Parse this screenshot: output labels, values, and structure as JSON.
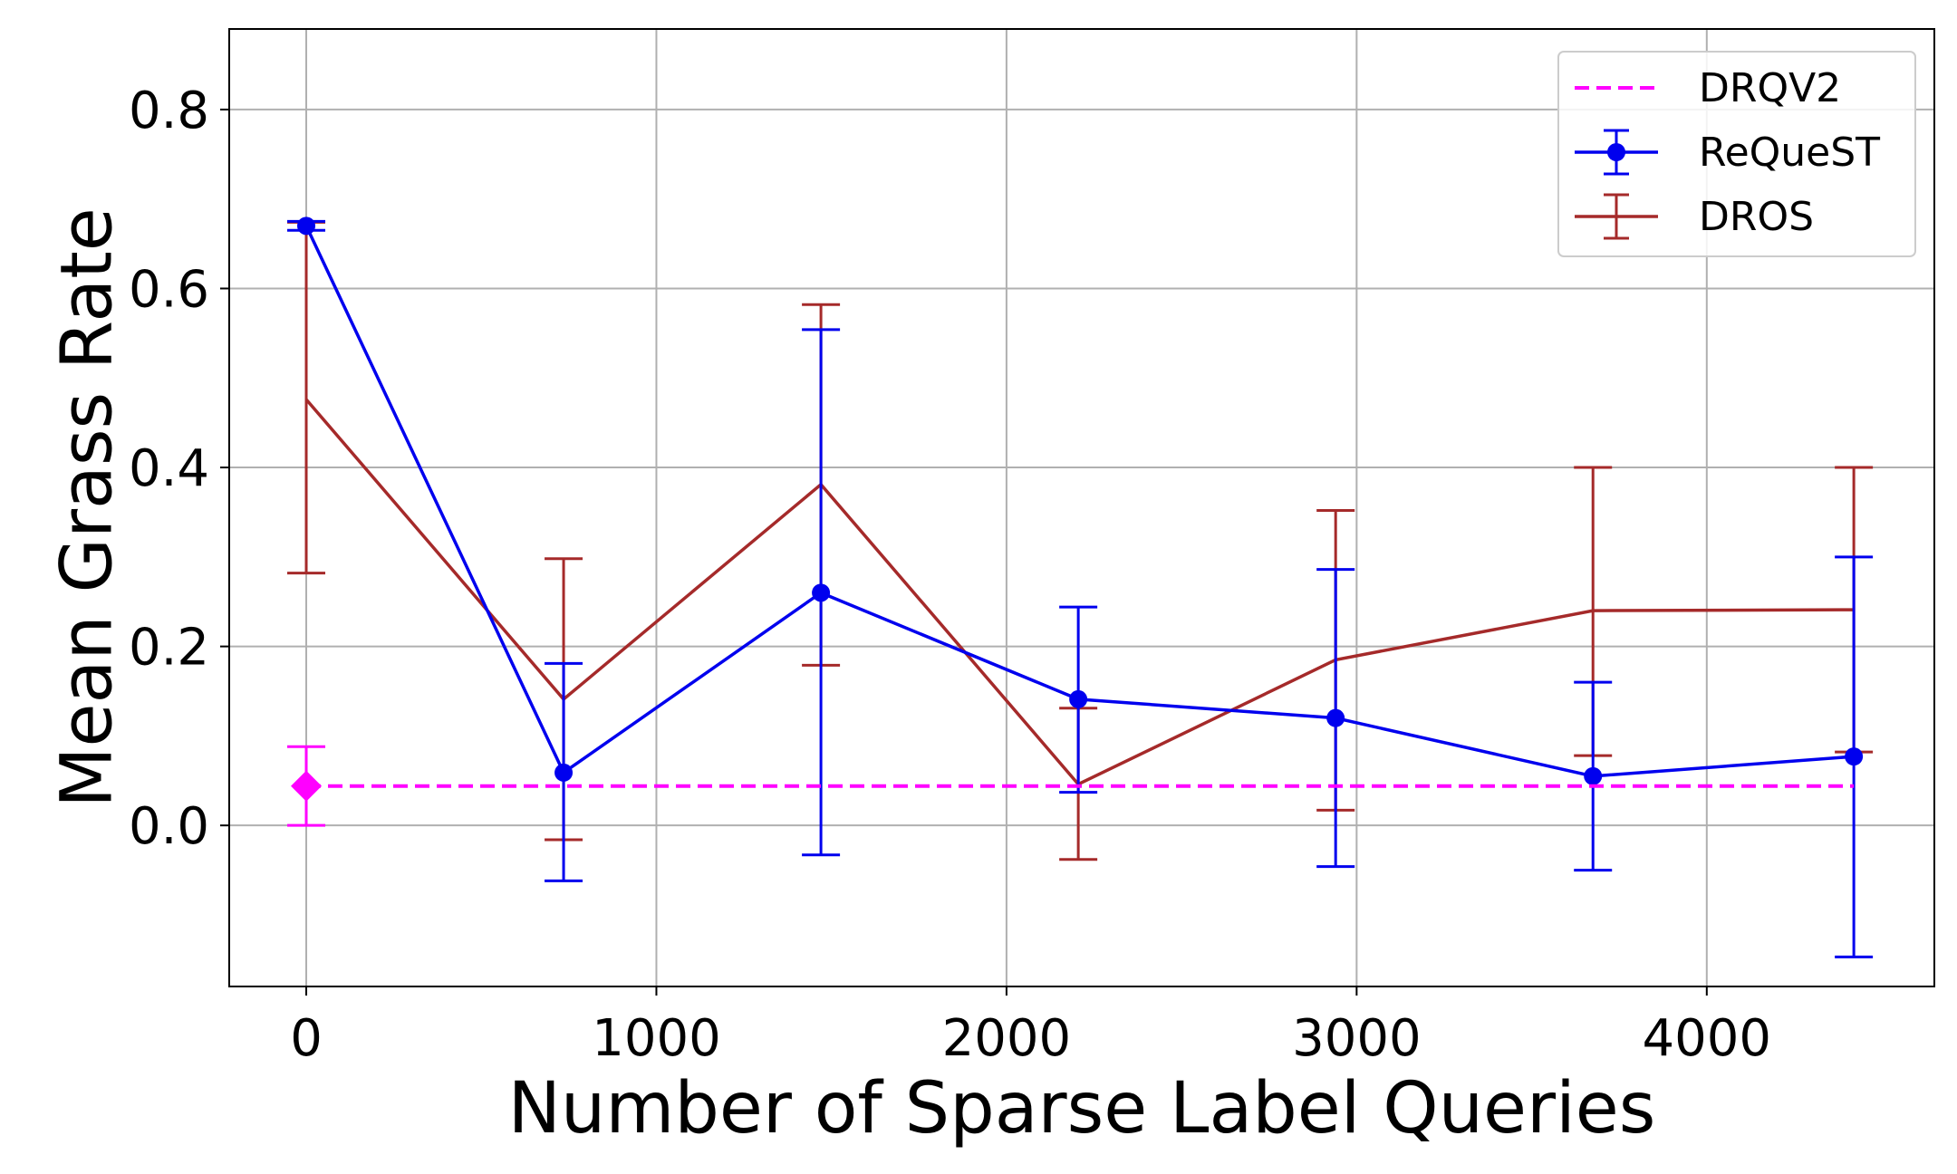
{
  "chart_data": {
    "type": "line",
    "xlabel": "Number of Sparse Label Queries",
    "ylabel": "Mean Grass Rate",
    "xlim": [
      -220,
      4650
    ],
    "ylim": [
      -0.18,
      0.89
    ],
    "xticks": [
      0,
      1000,
      2000,
      3000,
      4000
    ],
    "xtick_labels": [
      "0",
      "1000",
      "2000",
      "3000",
      "4000"
    ],
    "yticks": [
      0.0,
      0.2,
      0.4,
      0.6,
      0.8
    ],
    "ytick_labels": [
      "0.0",
      "0.2",
      "0.4",
      "0.6",
      "0.8"
    ],
    "grid": true,
    "legend_position": "top-right",
    "series": [
      {
        "name": "DRQV2",
        "color": "#ff00ff",
        "style": "dashed",
        "x": [
          0,
          4420
        ],
        "values": [
          0.044,
          0.044
        ],
        "point": {
          "x": 0,
          "value": 0.044,
          "err_low": 0.0,
          "err_high": 0.088,
          "marker": "diamond"
        }
      },
      {
        "name": "ReQueST",
        "color": "#0000ee",
        "style": "solid-markers",
        "x": [
          0,
          735,
          1470,
          2205,
          2940,
          3675,
          4420
        ],
        "values": [
          0.67,
          0.059,
          0.26,
          0.141,
          0.12,
          0.055,
          0.077
        ],
        "err_low": [
          0.665,
          -0.062,
          -0.033,
          0.037,
          -0.046,
          -0.05,
          -0.147
        ],
        "err_high": [
          0.675,
          0.181,
          0.554,
          0.244,
          0.286,
          0.16,
          0.3
        ]
      },
      {
        "name": "DROS",
        "color": "#a52a2a",
        "style": "solid",
        "x": [
          0,
          735,
          1470,
          2205,
          2940,
          3675,
          4420
        ],
        "values": [
          0.476,
          0.141,
          0.381,
          0.046,
          0.185,
          0.24,
          0.241
        ],
        "err_low": [
          0.282,
          -0.016,
          0.179,
          -0.038,
          0.017,
          0.078,
          0.082
        ],
        "err_high": [
          0.674,
          0.298,
          0.582,
          0.131,
          0.352,
          0.4,
          0.4
        ]
      }
    ]
  }
}
